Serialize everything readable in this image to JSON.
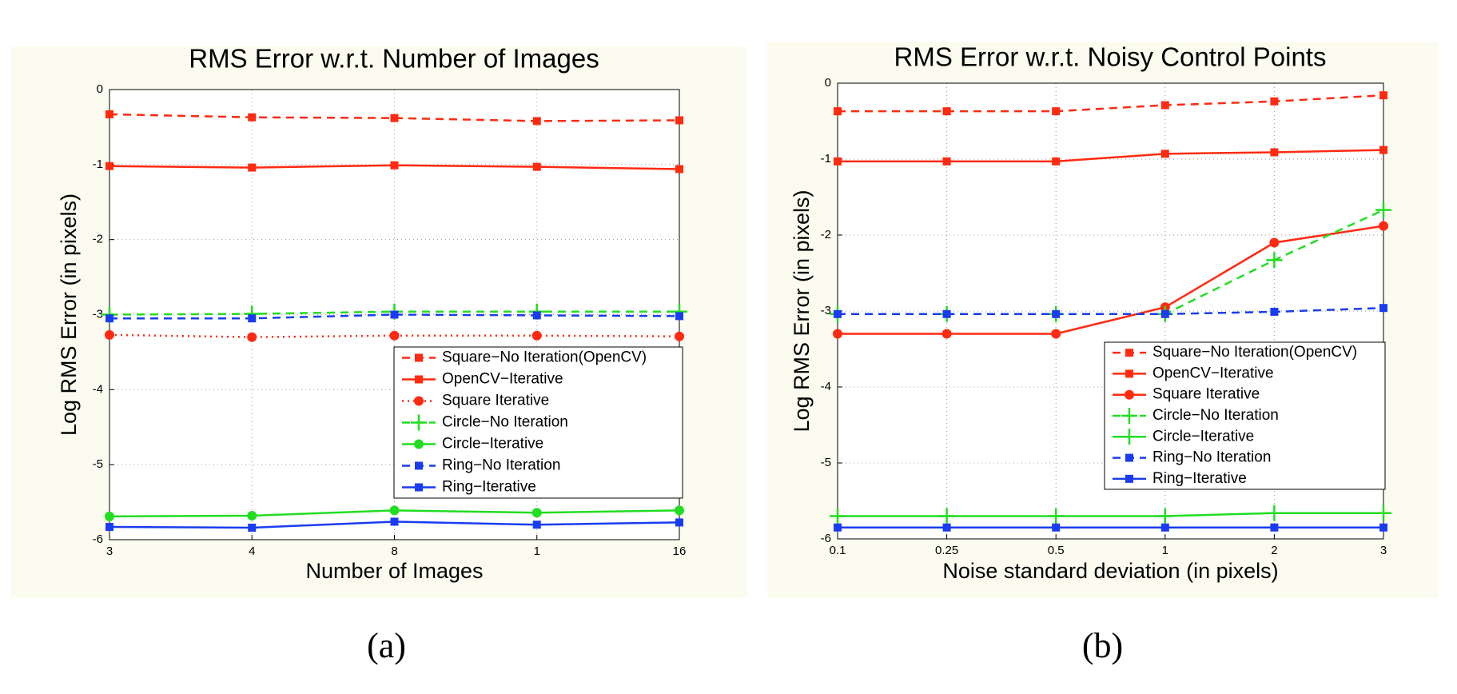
{
  "chart_data": [
    {
      "type": "line",
      "title": "RMS Error w.r.t. Number of Images",
      "xlabel": "Number of Images",
      "ylabel": "Log RMS Error (in pixels)",
      "caption": "(a)",
      "categories": [
        "3",
        "4",
        "8",
        "1",
        "16"
      ],
      "ylim": [
        -6,
        0
      ],
      "yticks": [
        0,
        -1,
        -2,
        -3,
        -4,
        -5,
        -6
      ],
      "grid": true,
      "legend": "lower right",
      "series": [
        {
          "name": "Square−No Iteration(OpenCV)",
          "color": "#ff2a10",
          "dash": "dashed",
          "marker": "square",
          "values": [
            -0.33,
            -0.37,
            -0.38,
            -0.42,
            -0.41
          ]
        },
        {
          "name": "OpenCV−Iterative",
          "color": "#ff2a10",
          "dash": "solid",
          "marker": "square",
          "values": [
            -1.02,
            -1.04,
            -1.01,
            -1.03,
            -1.06
          ]
        },
        {
          "name": "Square Iterative",
          "color": "#ff2a10",
          "dash": "dotted",
          "marker": "circle",
          "values": [
            -3.27,
            -3.3,
            -3.28,
            -3.28,
            -3.29
          ]
        },
        {
          "name": "Circle−No Iteration",
          "color": "#22dd22",
          "dash": "dashed",
          "marker": "plus",
          "values": [
            -3.0,
            -2.99,
            -2.96,
            -2.96,
            -2.96
          ]
        },
        {
          "name": "Circle−Iterative",
          "color": "#22dd22",
          "dash": "solid",
          "marker": "circle",
          "values": [
            -5.69,
            -5.68,
            -5.61,
            -5.64,
            -5.61
          ]
        },
        {
          "name": "Ring−No Iteration",
          "color": "#1a3cf0",
          "dash": "dashed",
          "marker": "square",
          "values": [
            -3.05,
            -3.05,
            -3.0,
            -3.01,
            -3.02
          ]
        },
        {
          "name": "Ring−Iterative",
          "color": "#1a3cf0",
          "dash": "solid",
          "marker": "square",
          "values": [
            -5.83,
            -5.84,
            -5.76,
            -5.8,
            -5.77
          ]
        }
      ]
    },
    {
      "type": "line",
      "title": "RMS Error w.r.t. Noisy Control Points",
      "xlabel": "Noise standard deviation (in pixels)",
      "ylabel": "Log RMS Error (in pixels)",
      "caption": "(b)",
      "categories": [
        "0.1",
        "0.25",
        "0.5",
        "1",
        "2",
        "3"
      ],
      "ylim": [
        -6,
        0
      ],
      "yticks": [
        0,
        -1,
        -2,
        -3,
        -4,
        -5,
        -6
      ],
      "grid": true,
      "legend": "lower right",
      "series": [
        {
          "name": "Square−No Iteration(OpenCV)",
          "color": "#ff2a10",
          "dash": "dashed",
          "marker": "square",
          "values": [
            -0.37,
            -0.37,
            -0.37,
            -0.29,
            -0.24,
            -0.16
          ]
        },
        {
          "name": "OpenCV−Iterative",
          "color": "#ff2a10",
          "dash": "solid",
          "marker": "square",
          "values": [
            -1.03,
            -1.03,
            -1.03,
            -0.93,
            -0.91,
            -0.88
          ]
        },
        {
          "name": "Square Iterative",
          "color": "#ff2a10",
          "dash": "solid",
          "marker": "circle",
          "values": [
            -3.3,
            -3.3,
            -3.3,
            -2.95,
            -2.1,
            -1.88
          ]
        },
        {
          "name": "Circle−No Iteration",
          "color": "#22dd22",
          "dash": "dashed",
          "marker": "plus",
          "values": [
            -3.04,
            -3.04,
            -3.04,
            -3.04,
            -2.33,
            -1.67
          ]
        },
        {
          "name": "Circle−Iterative",
          "color": "#22dd22",
          "dash": "solid",
          "marker": "plus",
          "values": [
            -5.7,
            -5.7,
            -5.7,
            -5.7,
            -5.66,
            -5.66
          ]
        },
        {
          "name": "Ring−No Iteration",
          "color": "#1a3cf0",
          "dash": "dashed",
          "marker": "square",
          "values": [
            -3.04,
            -3.04,
            -3.04,
            -3.04,
            -3.01,
            -2.96
          ]
        },
        {
          "name": "Ring−Iterative",
          "color": "#1a3cf0",
          "dash": "solid",
          "marker": "square",
          "values": [
            -5.85,
            -5.85,
            -5.85,
            -5.85,
            -5.85,
            -5.85
          ]
        }
      ]
    }
  ]
}
